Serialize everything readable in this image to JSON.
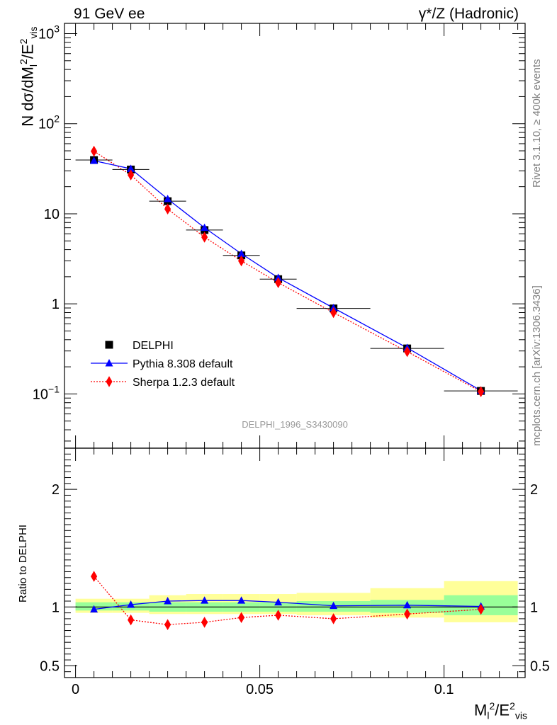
{
  "header": {
    "left": "91 GeV ee",
    "right": "γ*/Z (Hadronic)"
  },
  "side_labels": {
    "rivet": "Rivet 3.1.10, ≥ 400k events",
    "mcplots": "mcplots.cern.ch [arXiv:1306.3436]"
  },
  "analysis_tag": "DELPHI_1996_S3430090",
  "axes": {
    "main_ylabel": "N dσ/dM_l^2/E_vis^2",
    "ratio_ylabel": "Ratio to DELPHI",
    "xlabel": "M_l^2/E_vis^2"
  },
  "legend": {
    "placement": "lower-left",
    "entries": [
      "DELPHI",
      "Pythia 8.308 default",
      "Sherpa 1.2.3 default"
    ]
  },
  "colors": {
    "data": "#000000",
    "pythia": "#0000ff",
    "sherpa": "#ff0000",
    "band_inner": "#99ff99",
    "band_outer": "#ffff99",
    "side_text": "#808080"
  },
  "chart_data": [
    {
      "type": "line",
      "panel": "main",
      "yscale": "log",
      "xlim": [
        -0.003,
        0.122
      ],
      "ylim": [
        0.025,
        1300
      ],
      "x_ticks": [
        0,
        0.05,
        0.1
      ],
      "y_ticks": [
        {
          "value": 0.1,
          "label": "10^-1"
        },
        {
          "value": 1,
          "label": "1"
        },
        {
          "value": 10,
          "label": "10"
        },
        {
          "value": 100,
          "label": "10^2"
        },
        {
          "value": 1000,
          "label": "10^3"
        }
      ],
      "bin_edges": [
        0,
        0.01,
        0.02,
        0.03,
        0.04,
        0.05,
        0.06,
        0.08,
        0.1,
        0.12
      ],
      "x": [
        0.005,
        0.015,
        0.025,
        0.035,
        0.045,
        0.055,
        0.07,
        0.09,
        0.11
      ],
      "series": [
        {
          "name": "DELPHI",
          "values": [
            39.5,
            31.0,
            13.8,
            6.6,
            3.45,
            1.88,
            0.89,
            0.32,
            0.108
          ]
        },
        {
          "name": "Pythia 8.308 default",
          "values": [
            38.8,
            31.6,
            14.6,
            7.0,
            3.6,
            1.95,
            0.9,
            0.325,
            0.109
          ]
        },
        {
          "name": "Sherpa 1.2.3 default",
          "values": [
            49.5,
            27.0,
            11.3,
            5.5,
            3.0,
            1.72,
            0.8,
            0.295,
            0.106
          ]
        }
      ]
    },
    {
      "type": "line",
      "panel": "ratio",
      "xlim": [
        -0.003,
        0.122
      ],
      "ylim": [
        0.4,
        2.35
      ],
      "y_ticks": [
        0.5,
        1,
        2
      ],
      "x_ticks": [
        0,
        0.05,
        0.1
      ],
      "bands": {
        "bin_edges": [
          0,
          0.01,
          0.02,
          0.03,
          0.04,
          0.05,
          0.06,
          0.08,
          0.1,
          0.12
        ],
        "inner": [
          [
            0.97,
            1.04
          ],
          [
            0.97,
            1.04
          ],
          [
            0.96,
            1.04
          ],
          [
            0.96,
            1.04
          ],
          [
            0.96,
            1.04
          ],
          [
            0.96,
            1.04
          ],
          [
            0.96,
            1.05
          ],
          [
            0.95,
            1.06
          ],
          [
            0.93,
            1.1
          ]
        ],
        "outer": [
          [
            0.95,
            1.07
          ],
          [
            0.95,
            1.07
          ],
          [
            0.94,
            1.1
          ],
          [
            0.94,
            1.11
          ],
          [
            0.94,
            1.11
          ],
          [
            0.94,
            1.11
          ],
          [
            0.93,
            1.12
          ],
          [
            0.91,
            1.16
          ],
          [
            0.87,
            1.22
          ]
        ]
      },
      "x": [
        0.005,
        0.015,
        0.025,
        0.035,
        0.045,
        0.055,
        0.07,
        0.09,
        0.11
      ],
      "series": [
        {
          "name": "Pythia 8.308 default",
          "values": [
            0.98,
            1.02,
            1.05,
            1.055,
            1.055,
            1.04,
            1.01,
            1.015,
            1.005
          ]
        },
        {
          "name": "Sherpa 1.2.3 default",
          "values": [
            1.26,
            0.89,
            0.85,
            0.87,
            0.91,
            0.93,
            0.9,
            0.94,
            0.98
          ]
        }
      ]
    }
  ]
}
